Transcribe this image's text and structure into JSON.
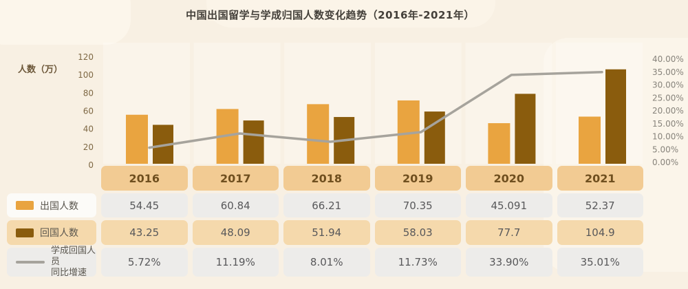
{
  "title": "中国出国留学与学成归国人数变化趋势（2016年-2021年）",
  "left_axis": {
    "label": "人数（万）",
    "ticks": [
      0,
      20,
      40,
      60,
      80,
      100,
      120
    ]
  },
  "right_axis": {
    "labels": [
      "0.00%",
      "5.00%",
      "10.00%",
      "15.00%",
      "20.00%",
      "25.00%",
      "30.00%",
      "35.00%",
      "40.00%"
    ],
    "values": [
      0,
      5,
      10,
      15,
      20,
      25,
      30,
      35,
      40
    ]
  },
  "colors": {
    "background": "#f8f0e3",
    "bar_out": "#e9a440",
    "bar_return": "#8a5c0d",
    "growth_line": "#a6a39c",
    "year_box": "#f2cb93",
    "peach_box": "#f5d9ac",
    "gray_box": "#edecea",
    "year_text": "#6f4f1f",
    "value_text": "#58585a",
    "left_tick_text": "#7e6844",
    "right_tick_text": "#87837b"
  },
  "chart_data": {
    "type": "bar",
    "title": "中国出国留学与学成归国人数变化趋势（2016年-2021年）",
    "categories": [
      "2016",
      "2017",
      "2018",
      "2019",
      "2020",
      "2021"
    ],
    "series": [
      {
        "name": "出国人数",
        "type": "bar",
        "axis": "left",
        "color": "#e9a440",
        "values": [
          54.45,
          60.84,
          66.21,
          70.35,
          45.091,
          52.37
        ]
      },
      {
        "name": "回国人数",
        "type": "bar",
        "axis": "left",
        "color": "#8a5c0d",
        "values": [
          43.25,
          48.09,
          51.94,
          58.03,
          77.7,
          104.9
        ]
      },
      {
        "name": "学成回国人员同比增速",
        "type": "line",
        "axis": "right",
        "unit": "%",
        "color": "#a6a39c",
        "values": [
          5.72,
          11.19,
          8.01,
          11.73,
          33.9,
          35.01
        ]
      }
    ],
    "ylabel_left": "人数（万）",
    "ylim_left": [
      0,
      120
    ],
    "ylim_right": [
      0,
      40
    ],
    "grid": false,
    "legend_position": "table-left-column"
  },
  "table": {
    "year_row": [
      "2016",
      "2017",
      "2018",
      "2019",
      "2020",
      "2021"
    ],
    "rows": [
      {
        "legend": "出国人数",
        "swatch": "bar-light",
        "cell_style": "gray",
        "cells": [
          "54.45",
          "60.84",
          "66.21",
          "70.35",
          "45.091",
          "52.37"
        ]
      },
      {
        "legend": "回国人数",
        "swatch": "bar-dark",
        "cell_style": "peach",
        "cells": [
          "43.25",
          "48.09",
          "51.94",
          "58.03",
          "77.7",
          "104.9"
        ]
      },
      {
        "legend": "学成回国人员同比增速",
        "legend_lines": [
          "学成回国人员",
          "同比增速"
        ],
        "swatch": "line",
        "cell_style": "gray",
        "cells": [
          "5.72%",
          "11.19%",
          "8.01%",
          "11.73%",
          "33.90%",
          "35.01%"
        ]
      }
    ]
  }
}
